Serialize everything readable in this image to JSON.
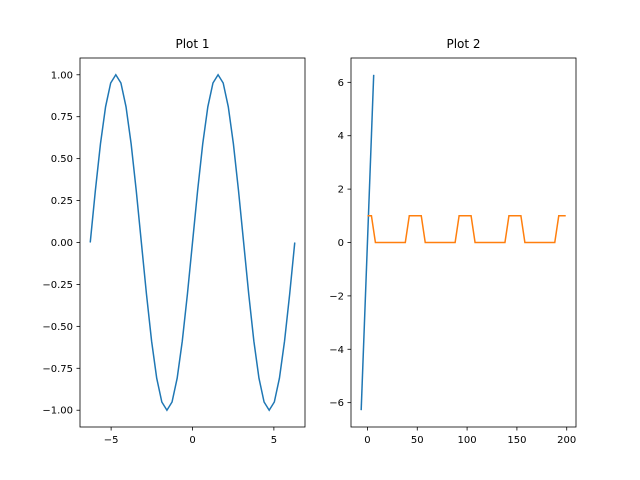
{
  "chart_data": [
    {
      "type": "line",
      "title": "Plot 1",
      "xlim": [
        -6.912,
        6.912
      ],
      "ylim": [
        -1.1,
        1.1
      ],
      "xticks": [
        {
          "value": -5,
          "label": "−5"
        },
        0,
        5
      ],
      "yticks": [
        {
          "value": -1,
          "label": "−1.00"
        },
        {
          "value": -0.75,
          "label": "−0.75"
        },
        {
          "value": -0.5,
          "label": "−0.50"
        },
        {
          "value": -0.25,
          "label": "−0.25"
        },
        {
          "value": 0,
          "label": "0.00"
        },
        {
          "value": 0.25,
          "label": "0.25"
        },
        {
          "value": 0.5,
          "label": "0.50"
        },
        {
          "value": 0.75,
          "label": "0.75"
        },
        {
          "value": 1,
          "label": "1.00"
        }
      ],
      "series": [
        {
          "color": "#1f77b4",
          "x": [
            -6.283,
            -5.969,
            -5.655,
            -5.341,
            -5.027,
            -4.712,
            -4.398,
            -4.084,
            -3.77,
            -3.456,
            -3.142,
            -2.827,
            -2.513,
            -2.199,
            -1.885,
            -1.571,
            -1.257,
            -0.942,
            -0.628,
            -0.314,
            0,
            0.314,
            0.628,
            0.942,
            1.257,
            1.571,
            1.885,
            2.199,
            2.513,
            2.827,
            3.142,
            3.456,
            3.77,
            4.084,
            4.398,
            4.712,
            5.027,
            5.341,
            5.655,
            5.969,
            6.283
          ],
          "values": [
            0,
            0.309,
            0.588,
            0.809,
            0.951,
            1,
            0.951,
            0.809,
            0.588,
            0.309,
            0,
            -0.309,
            -0.588,
            -0.809,
            -0.951,
            -1,
            -0.951,
            -0.809,
            -0.588,
            -0.309,
            0,
            0.309,
            0.588,
            0.809,
            0.951,
            1,
            0.951,
            0.809,
            0.588,
            0.309,
            0,
            -0.309,
            -0.588,
            -0.809,
            -0.951,
            -1,
            -0.951,
            -0.809,
            -0.588,
            -0.309,
            0
          ]
        }
      ]
    },
    {
      "type": "line",
      "title": "Plot 2",
      "xlim": [
        -16.5,
        209.3
      ],
      "ylim": [
        -6.912,
        6.912
      ],
      "xticks": [
        0,
        50,
        100,
        150,
        200
      ],
      "yticks": [
        {
          "value": -6,
          "label": "−6"
        },
        {
          "value": -4,
          "label": "−4"
        },
        {
          "value": -2,
          "label": "−2"
        },
        0,
        2,
        4,
        6
      ],
      "series": [
        {
          "color": "#1f77b4",
          "x": [
            -6.283,
            6.283
          ],
          "values": [
            -6.283,
            6.283
          ]
        },
        {
          "color": "#ff7f0e",
          "x": [
            0,
            4,
            8,
            38,
            42,
            54,
            58,
            88,
            92,
            104,
            108,
            138,
            142,
            154,
            158,
            188,
            192,
            199
          ],
          "values": [
            1,
            1,
            0,
            0,
            1,
            1,
            0,
            0,
            1,
            1,
            0,
            0,
            1,
            1,
            0,
            0,
            1,
            1
          ]
        }
      ]
    }
  ]
}
